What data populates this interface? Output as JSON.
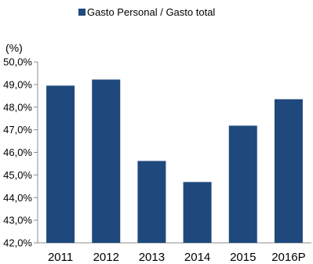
{
  "chart_data": {
    "type": "bar",
    "legend": {
      "position": "top"
    },
    "ylabel": "(%)",
    "categories": [
      "2011",
      "2012",
      "2013",
      "2014",
      "2015",
      "2016P"
    ],
    "series": [
      {
        "name": "Gasto Personal / Gasto total",
        "color": "#1f497d",
        "values": [
          48.95,
          49.22,
          45.62,
          44.69,
          47.18,
          48.35
        ]
      }
    ],
    "ylim": [
      42.0,
      50.0
    ],
    "yticks": [
      42,
      43,
      44,
      45,
      46,
      47,
      48,
      49,
      50
    ],
    "ytick_labels": [
      "42,0%",
      "43,0%",
      "44,0%",
      "45,0%",
      "46,0%",
      "47,0%",
      "48,0%",
      "49,0%",
      "50,0%"
    ],
    "grid": false
  }
}
